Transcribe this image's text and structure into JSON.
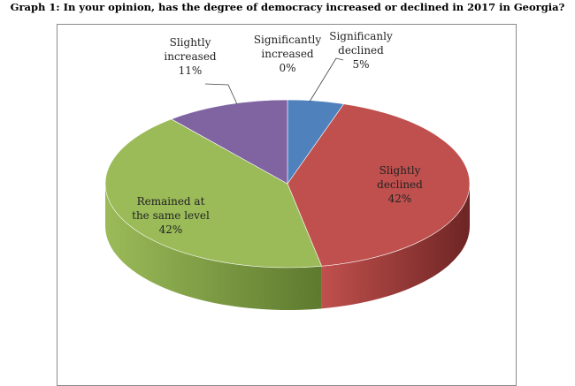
{
  "chart_data": {
    "type": "pie",
    "title": "Graph 1: In your opinion, has the degree of democracy increased or declined in 2017 in Georgia?",
    "slices": [
      {
        "label": [
          "Significanly",
          "declined"
        ],
        "value_label": "5%",
        "value": 5,
        "color": "#4f81bd",
        "side": "#2f4f7a"
      },
      {
        "label": [
          "Slightly",
          "declined"
        ],
        "value_label": "42%",
        "value": 42,
        "color": "#c0504d",
        "side": "#6e2524"
      },
      {
        "label": [
          "Remained at",
          "the same level"
        ],
        "value_label": "42%",
        "value": 42,
        "color": "#9bbb59",
        "side": "#5d7a2e"
      },
      {
        "label": [
          "Slightly",
          "increased"
        ],
        "value_label": "11%",
        "value": 11,
        "color": "#8064a2",
        "side": "#4c3a66"
      },
      {
        "label": [
          "Significantly",
          "increased"
        ],
        "value_label": "0%",
        "value": 0,
        "color": "#f79646",
        "side": "#a85f22"
      }
    ]
  }
}
